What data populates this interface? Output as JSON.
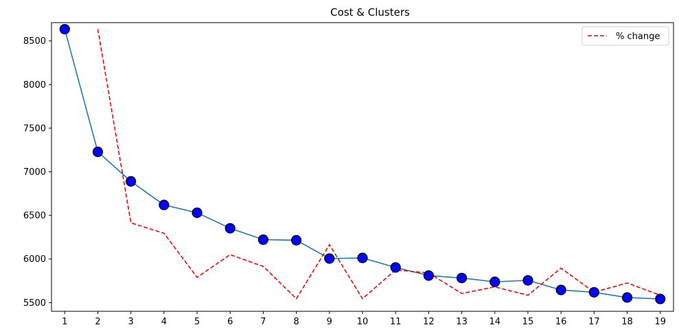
{
  "chart_data": {
    "type": "line",
    "title": "Cost & Clusters",
    "xlabel": "",
    "ylabel": "",
    "x": [
      1,
      2,
      3,
      4,
      5,
      6,
      7,
      8,
      9,
      10,
      11,
      12,
      13,
      14,
      15,
      16,
      17,
      18,
      19
    ],
    "xlim": [
      0.6,
      19.4
    ],
    "ylim": [
      5400,
      8710
    ],
    "y_ticks": [
      5500,
      6000,
      6500,
      7000,
      7500,
      8000,
      8500
    ],
    "grid": false,
    "legend_position": "top-right",
    "series": [
      {
        "style": "solid-with-markers",
        "color": "#1f77b4",
        "marker_color": "#0000ff",
        "x": [
          1,
          2,
          3,
          4,
          5,
          6,
          7,
          8,
          9,
          10,
          11,
          12,
          13,
          14,
          15,
          16,
          17,
          18,
          19
        ],
        "values": [
          8635,
          7228,
          6890,
          6620,
          6530,
          6352,
          6222,
          6215,
          6005,
          6012,
          5903,
          5810,
          5782,
          5738,
          5755,
          5645,
          5618,
          5558,
          5542
        ]
      },
      {
        "name": "% change",
        "style": "dashed",
        "color": "#ff0000",
        "x": [
          2,
          3,
          4,
          5,
          6,
          7,
          8,
          9,
          10,
          11,
          12,
          13,
          14,
          15,
          16,
          17,
          18,
          19
        ],
        "values": [
          8635,
          6415,
          6295,
          5790,
          6050,
          5915,
          5545,
          6165,
          5545,
          5875,
          5840,
          5605,
          5680,
          5585,
          5895,
          5620,
          5725,
          5585
        ]
      }
    ]
  }
}
